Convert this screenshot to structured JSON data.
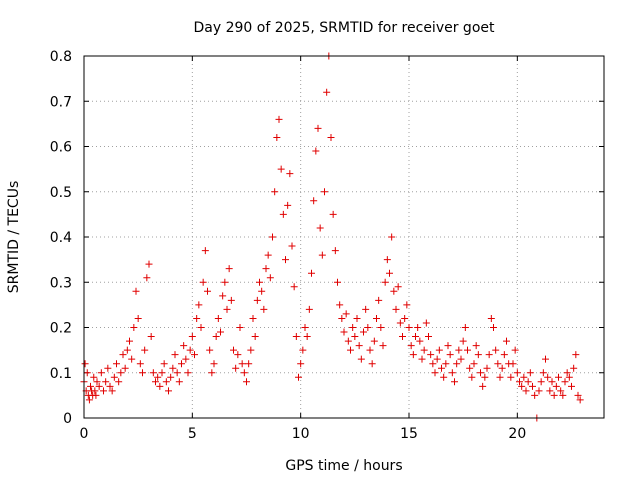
{
  "chart_data": {
    "type": "scatter",
    "title": "Day 290 of 2025, SRMTID for receiver goet",
    "xlabel": "GPS time / hours",
    "ylabel": "SRMTID / TECUs",
    "xlim": [
      0,
      24
    ],
    "ylim": [
      0,
      0.8
    ],
    "xticks": [
      0,
      5,
      10,
      15,
      20
    ],
    "yticks": [
      0,
      0.1,
      0.2,
      0.3,
      0.4,
      0.5,
      0.6,
      0.7,
      0.8
    ],
    "xtick_labels": [
      "0",
      "5",
      "10",
      "15",
      "20"
    ],
    "ytick_labels": [
      "0",
      "0.1",
      "0.2",
      "0.3",
      "0.4",
      "0.5",
      "0.6",
      "0.7",
      "0.8"
    ],
    "grid": true,
    "marker": "plus",
    "color": "#e00000",
    "series": [
      {
        "name": "SRMTID",
        "points": [
          [
            0.0,
            0.08
          ],
          [
            0.05,
            0.12
          ],
          [
            0.1,
            0.06
          ],
          [
            0.15,
            0.1
          ],
          [
            0.2,
            0.05
          ],
          [
            0.25,
            0.04
          ],
          [
            0.3,
            0.07
          ],
          [
            0.35,
            0.06
          ],
          [
            0.4,
            0.05
          ],
          [
            0.45,
            0.09
          ],
          [
            0.5,
            0.06
          ],
          [
            0.55,
            0.05
          ],
          [
            0.6,
            0.08
          ],
          [
            0.7,
            0.07
          ],
          [
            0.8,
            0.1
          ],
          [
            0.9,
            0.06
          ],
          [
            1.0,
            0.08
          ],
          [
            1.1,
            0.11
          ],
          [
            1.2,
            0.07
          ],
          [
            1.3,
            0.06
          ],
          [
            1.4,
            0.09
          ],
          [
            1.5,
            0.12
          ],
          [
            1.6,
            0.08
          ],
          [
            1.7,
            0.1
          ],
          [
            1.8,
            0.14
          ],
          [
            1.9,
            0.11
          ],
          [
            2.0,
            0.15
          ],
          [
            2.1,
            0.17
          ],
          [
            2.2,
            0.13
          ],
          [
            2.3,
            0.2
          ],
          [
            2.4,
            0.28
          ],
          [
            2.5,
            0.22
          ],
          [
            2.6,
            0.12
          ],
          [
            2.7,
            0.1
          ],
          [
            2.8,
            0.15
          ],
          [
            2.9,
            0.31
          ],
          [
            3.0,
            0.34
          ],
          [
            3.1,
            0.18
          ],
          [
            3.2,
            0.1
          ],
          [
            3.3,
            0.08
          ],
          [
            3.4,
            0.09
          ],
          [
            3.5,
            0.07
          ],
          [
            3.6,
            0.1
          ],
          [
            3.7,
            0.12
          ],
          [
            3.8,
            0.08
          ],
          [
            3.9,
            0.06
          ],
          [
            4.0,
            0.09
          ],
          [
            4.1,
            0.11
          ],
          [
            4.2,
            0.14
          ],
          [
            4.3,
            0.1
          ],
          [
            4.4,
            0.08
          ],
          [
            4.5,
            0.12
          ],
          [
            4.6,
            0.16
          ],
          [
            4.7,
            0.13
          ],
          [
            4.8,
            0.1
          ],
          [
            4.9,
            0.15
          ],
          [
            5.0,
            0.18
          ],
          [
            5.1,
            0.14
          ],
          [
            5.2,
            0.22
          ],
          [
            5.3,
            0.25
          ],
          [
            5.4,
            0.2
          ],
          [
            5.5,
            0.3
          ],
          [
            5.6,
            0.37
          ],
          [
            5.7,
            0.28
          ],
          [
            5.8,
            0.15
          ],
          [
            5.9,
            0.1
          ],
          [
            6.0,
            0.12
          ],
          [
            6.1,
            0.18
          ],
          [
            6.2,
            0.22
          ],
          [
            6.3,
            0.19
          ],
          [
            6.4,
            0.27
          ],
          [
            6.5,
            0.3
          ],
          [
            6.6,
            0.24
          ],
          [
            6.7,
            0.33
          ],
          [
            6.8,
            0.26
          ],
          [
            6.9,
            0.15
          ],
          [
            7.0,
            0.11
          ],
          [
            7.1,
            0.14
          ],
          [
            7.2,
            0.2
          ],
          [
            7.3,
            0.12
          ],
          [
            7.4,
            0.1
          ],
          [
            7.5,
            0.08
          ],
          [
            7.6,
            0.12
          ],
          [
            7.7,
            0.15
          ],
          [
            7.8,
            0.22
          ],
          [
            7.9,
            0.18
          ],
          [
            8.0,
            0.26
          ],
          [
            8.1,
            0.3
          ],
          [
            8.2,
            0.28
          ],
          [
            8.3,
            0.24
          ],
          [
            8.4,
            0.33
          ],
          [
            8.5,
            0.36
          ],
          [
            8.6,
            0.31
          ],
          [
            8.7,
            0.4
          ],
          [
            8.8,
            0.5
          ],
          [
            8.9,
            0.62
          ],
          [
            9.0,
            0.66
          ],
          [
            9.1,
            0.55
          ],
          [
            9.2,
            0.45
          ],
          [
            9.3,
            0.35
          ],
          [
            9.4,
            0.47
          ],
          [
            9.5,
            0.54
          ],
          [
            9.6,
            0.38
          ],
          [
            9.7,
            0.29
          ],
          [
            9.8,
            0.18
          ],
          [
            9.9,
            0.09
          ],
          [
            10.0,
            0.12
          ],
          [
            10.1,
            0.15
          ],
          [
            10.2,
            0.2
          ],
          [
            10.3,
            0.18
          ],
          [
            10.4,
            0.24
          ],
          [
            10.5,
            0.32
          ],
          [
            10.6,
            0.48
          ],
          [
            10.7,
            0.59
          ],
          [
            10.8,
            0.64
          ],
          [
            10.9,
            0.42
          ],
          [
            11.0,
            0.36
          ],
          [
            11.1,
            0.5
          ],
          [
            11.2,
            0.72
          ],
          [
            11.3,
            0.8
          ],
          [
            11.4,
            0.62
          ],
          [
            11.5,
            0.45
          ],
          [
            11.6,
            0.37
          ],
          [
            11.7,
            0.3
          ],
          [
            11.8,
            0.25
          ],
          [
            11.9,
            0.22
          ],
          [
            12.0,
            0.19
          ],
          [
            12.1,
            0.23
          ],
          [
            12.2,
            0.17
          ],
          [
            12.3,
            0.15
          ],
          [
            12.4,
            0.2
          ],
          [
            12.5,
            0.18
          ],
          [
            12.6,
            0.22
          ],
          [
            12.7,
            0.16
          ],
          [
            12.8,
            0.13
          ],
          [
            12.9,
            0.19
          ],
          [
            13.0,
            0.24
          ],
          [
            13.1,
            0.2
          ],
          [
            13.2,
            0.15
          ],
          [
            13.3,
            0.12
          ],
          [
            13.4,
            0.17
          ],
          [
            13.5,
            0.22
          ],
          [
            13.6,
            0.26
          ],
          [
            13.7,
            0.2
          ],
          [
            13.8,
            0.16
          ],
          [
            13.9,
            0.3
          ],
          [
            14.0,
            0.35
          ],
          [
            14.1,
            0.32
          ],
          [
            14.2,
            0.4
          ],
          [
            14.3,
            0.28
          ],
          [
            14.4,
            0.24
          ],
          [
            14.5,
            0.29
          ],
          [
            14.6,
            0.21
          ],
          [
            14.7,
            0.18
          ],
          [
            14.8,
            0.22
          ],
          [
            14.9,
            0.25
          ],
          [
            15.0,
            0.2
          ],
          [
            15.1,
            0.16
          ],
          [
            15.2,
            0.14
          ],
          [
            15.3,
            0.18
          ],
          [
            15.4,
            0.2
          ],
          [
            15.5,
            0.17
          ],
          [
            15.6,
            0.13
          ],
          [
            15.7,
            0.15
          ],
          [
            15.8,
            0.21
          ],
          [
            15.9,
            0.18
          ],
          [
            16.0,
            0.14
          ],
          [
            16.1,
            0.12
          ],
          [
            16.2,
            0.1
          ],
          [
            16.3,
            0.13
          ],
          [
            16.4,
            0.15
          ],
          [
            16.5,
            0.11
          ],
          [
            16.6,
            0.09
          ],
          [
            16.7,
            0.12
          ],
          [
            16.8,
            0.16
          ],
          [
            16.9,
            0.14
          ],
          [
            17.0,
            0.1
          ],
          [
            17.1,
            0.08
          ],
          [
            17.2,
            0.12
          ],
          [
            17.3,
            0.15
          ],
          [
            17.4,
            0.13
          ],
          [
            17.5,
            0.17
          ],
          [
            17.6,
            0.2
          ],
          [
            17.7,
            0.15
          ],
          [
            17.8,
            0.11
          ],
          [
            17.9,
            0.09
          ],
          [
            18.0,
            0.12
          ],
          [
            18.1,
            0.16
          ],
          [
            18.2,
            0.14
          ],
          [
            18.3,
            0.1
          ],
          [
            18.4,
            0.07
          ],
          [
            18.5,
            0.09
          ],
          [
            18.6,
            0.11
          ],
          [
            18.7,
            0.14
          ],
          [
            18.8,
            0.22
          ],
          [
            18.9,
            0.2
          ],
          [
            19.0,
            0.15
          ],
          [
            19.1,
            0.12
          ],
          [
            19.2,
            0.09
          ],
          [
            19.3,
            0.11
          ],
          [
            19.4,
            0.14
          ],
          [
            19.5,
            0.17
          ],
          [
            19.6,
            0.12
          ],
          [
            19.7,
            0.09
          ],
          [
            19.8,
            0.12
          ],
          [
            19.9,
            0.15
          ],
          [
            20.0,
            0.1
          ],
          [
            20.1,
            0.08
          ],
          [
            20.2,
            0.07
          ],
          [
            20.3,
            0.09
          ],
          [
            20.4,
            0.06
          ],
          [
            20.5,
            0.08
          ],
          [
            20.6,
            0.1
          ],
          [
            20.7,
            0.07
          ],
          [
            20.8,
            0.05
          ],
          [
            20.9,
            0.0
          ],
          [
            21.0,
            0.06
          ],
          [
            21.1,
            0.08
          ],
          [
            21.2,
            0.1
          ],
          [
            21.3,
            0.13
          ],
          [
            21.4,
            0.09
          ],
          [
            21.5,
            0.06
          ],
          [
            21.6,
            0.08
          ],
          [
            21.7,
            0.05
          ],
          [
            21.8,
            0.07
          ],
          [
            21.9,
            0.09
          ],
          [
            22.0,
            0.06
          ],
          [
            22.1,
            0.05
          ],
          [
            22.2,
            0.08
          ],
          [
            22.3,
            0.1
          ],
          [
            22.4,
            0.09
          ],
          [
            22.5,
            0.07
          ],
          [
            22.6,
            0.11
          ],
          [
            22.7,
            0.14
          ],
          [
            22.8,
            0.05
          ],
          [
            22.9,
            0.04
          ]
        ]
      }
    ]
  }
}
